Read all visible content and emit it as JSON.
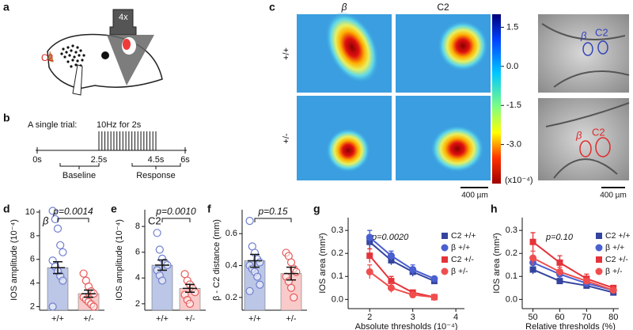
{
  "panel_labels": [
    "a",
    "b",
    "c",
    "d",
    "e",
    "f",
    "g",
    "h"
  ],
  "panel_a": {
    "objective": "4x",
    "whisker": "C2"
  },
  "panel_b": {
    "title": "A single trial:",
    "stimulus": "10Hz for 2s",
    "ticks": [
      "0s",
      "2.5s",
      "4.5s",
      "6s"
    ],
    "periods": [
      "Baseline",
      "Response"
    ]
  },
  "panel_c": {
    "columns": [
      "β",
      "C2"
    ],
    "rows": [
      "+/+",
      "+/-"
    ],
    "colorbar": {
      "lim": [
        -4.5,
        2
      ],
      "ticks": [
        1.5,
        {
          "value": 0,
          "label": "0.0"
        },
        -1.5,
        {
          "value": -3,
          "label": "-3.0"
        }
      ],
      "unit": "(x10⁻⁴)"
    },
    "scale_bar": "400 µm",
    "overlay_labels": [
      "β",
      "C2"
    ]
  },
  "chart_data": [
    {
      "type": "bar",
      "title": "p=0.0014",
      "annotation": "β",
      "ylabel": "IOS amplitude (10⁻⁴)",
      "categories": [
        "+/+",
        "+/-"
      ],
      "values": [
        5.3,
        3.1
      ],
      "errors": [
        0.5,
        0.3
      ],
      "points": [
        [
          10.1,
          9.4,
          8.6,
          7.2,
          6.6,
          5.9,
          5.4,
          5.0,
          4.6,
          4.2,
          2.0
        ],
        [
          4.8,
          4.2,
          3.7,
          3.3,
          3.1,
          2.8,
          2.6,
          2.4,
          2.2,
          2.0
        ]
      ],
      "colors": [
        "#bcc6e6",
        "#f9caca"
      ],
      "point_colors": [
        "#6f7fd0",
        "#e85a5a"
      ],
      "ylim": [
        1.7,
        10.2
      ],
      "yticks": [
        2,
        4,
        6,
        8,
        10
      ]
    },
    {
      "type": "bar",
      "title": "p=0.0010",
      "annotation": "C2",
      "ylabel": "IOS amplitude (10⁻⁴)",
      "categories": [
        "+/+",
        "+/-"
      ],
      "values": [
        5.0,
        3.2
      ],
      "errors": [
        0.4,
        0.3
      ],
      "points": [
        [
          7.5,
          6.2,
          5.5,
          5.2,
          5.0,
          4.6,
          4.2,
          3.8
        ],
        [
          4.3,
          3.8,
          3.5,
          3.2,
          2.9,
          2.7,
          2.3,
          2.0
        ]
      ],
      "colors": [
        "#bcc6e6",
        "#f9caca"
      ],
      "point_colors": [
        "#6f7fd0",
        "#e85a5a"
      ],
      "ylim": [
        1.5,
        9.3
      ],
      "yticks": [
        2,
        4,
        6,
        8
      ]
    },
    {
      "type": "bar",
      "title": "p=0.15",
      "ylabel": "β - C2 distance (mm)",
      "categories": [
        "+/+",
        "+/-"
      ],
      "values": [
        0.43,
        0.35
      ],
      "errors": [
        0.04,
        0.04
      ],
      "points": [
        [
          0.68,
          0.52,
          0.48,
          0.44,
          0.42,
          0.4,
          0.38,
          0.36,
          0.33,
          0.28,
          0.24
        ],
        [
          0.48,
          0.46,
          0.42,
          0.38,
          0.36,
          0.33,
          0.3,
          0.26,
          0.2
        ]
      ],
      "colors": [
        "#bcc6e6",
        "#f9caca"
      ],
      "point_colors": [
        "#6f7fd0",
        "#e85a5a"
      ],
      "ylim": [
        0.12,
        0.75
      ],
      "yticks": [
        0.2,
        0.4,
        0.6
      ]
    },
    {
      "type": "line",
      "title": "p=0.0020",
      "xlabel": "Absolute thresholds (10⁻⁴)",
      "ylabel": "IOS area (mm²)",
      "x": [
        2,
        2.5,
        3,
        3.5
      ],
      "series": [
        {
          "name": "C2 +/+",
          "color": "#34449e",
          "marker": "square",
          "values": [
            0.25,
            0.17,
            0.12,
            0.08
          ],
          "errors": [
            0.03,
            0.02,
            0.02,
            0.01
          ]
        },
        {
          "name": "β +/+",
          "color": "#4a5fd0",
          "marker": "circle",
          "values": [
            0.27,
            0.19,
            0.13,
            0.09
          ],
          "errors": [
            0.03,
            0.02,
            0.02,
            0.01
          ]
        },
        {
          "name": "C2 +/-",
          "color": "#e4333a",
          "marker": "square",
          "values": [
            0.19,
            0.08,
            0.03,
            0.01
          ],
          "errors": [
            0.03,
            0.02,
            0.01,
            0.01
          ]
        },
        {
          "name": "β +/-",
          "color": "#f04e4e",
          "marker": "circle",
          "values": [
            0.12,
            0.05,
            0.02,
            0.01
          ],
          "errors": [
            0.03,
            0.02,
            0.01,
            0.01
          ]
        }
      ],
      "xlim": [
        1.5,
        4.2
      ],
      "xticks": [
        2,
        3,
        4
      ],
      "ylim": [
        -0.04,
        0.39
      ],
      "yticks": [
        {
          "value": 0,
          "label": "0.0"
        },
        0.1,
        0.2,
        0.3
      ]
    },
    {
      "type": "line",
      "title": "p=0.10",
      "xlabel": "Relative thresholds (%)",
      "ylabel": "IOS area (mm²)",
      "x": [
        50,
        60,
        70,
        80
      ],
      "series": [
        {
          "name": "C2 +/+",
          "color": "#34449e",
          "marker": "square",
          "values": [
            0.13,
            0.08,
            0.06,
            0.03
          ],
          "errors": [
            0.02,
            0.01,
            0.01,
            0.01
          ]
        },
        {
          "name": "β +/+",
          "color": "#4a5fd0",
          "marker": "circle",
          "values": [
            0.16,
            0.11,
            0.07,
            0.04
          ],
          "errors": [
            0.02,
            0.02,
            0.01,
            0.01
          ]
        },
        {
          "name": "C2 +/-",
          "color": "#e4333a",
          "marker": "square",
          "values": [
            0.25,
            0.16,
            0.09,
            0.05
          ],
          "errors": [
            0.04,
            0.03,
            0.02,
            0.01
          ]
        },
        {
          "name": "β +/-",
          "color": "#f04e4e",
          "marker": "circle",
          "values": [
            0.18,
            0.12,
            0.08,
            0.04
          ],
          "errors": [
            0.03,
            0.02,
            0.01,
            0.01
          ]
        }
      ],
      "xlim": [
        46,
        82
      ],
      "xticks": [
        50,
        60,
        70,
        80
      ],
      "ylim": [
        -0.04,
        0.39
      ],
      "yticks": [
        {
          "value": 0,
          "label": "0.0"
        },
        0.1,
        0.2,
        0.3
      ]
    }
  ]
}
